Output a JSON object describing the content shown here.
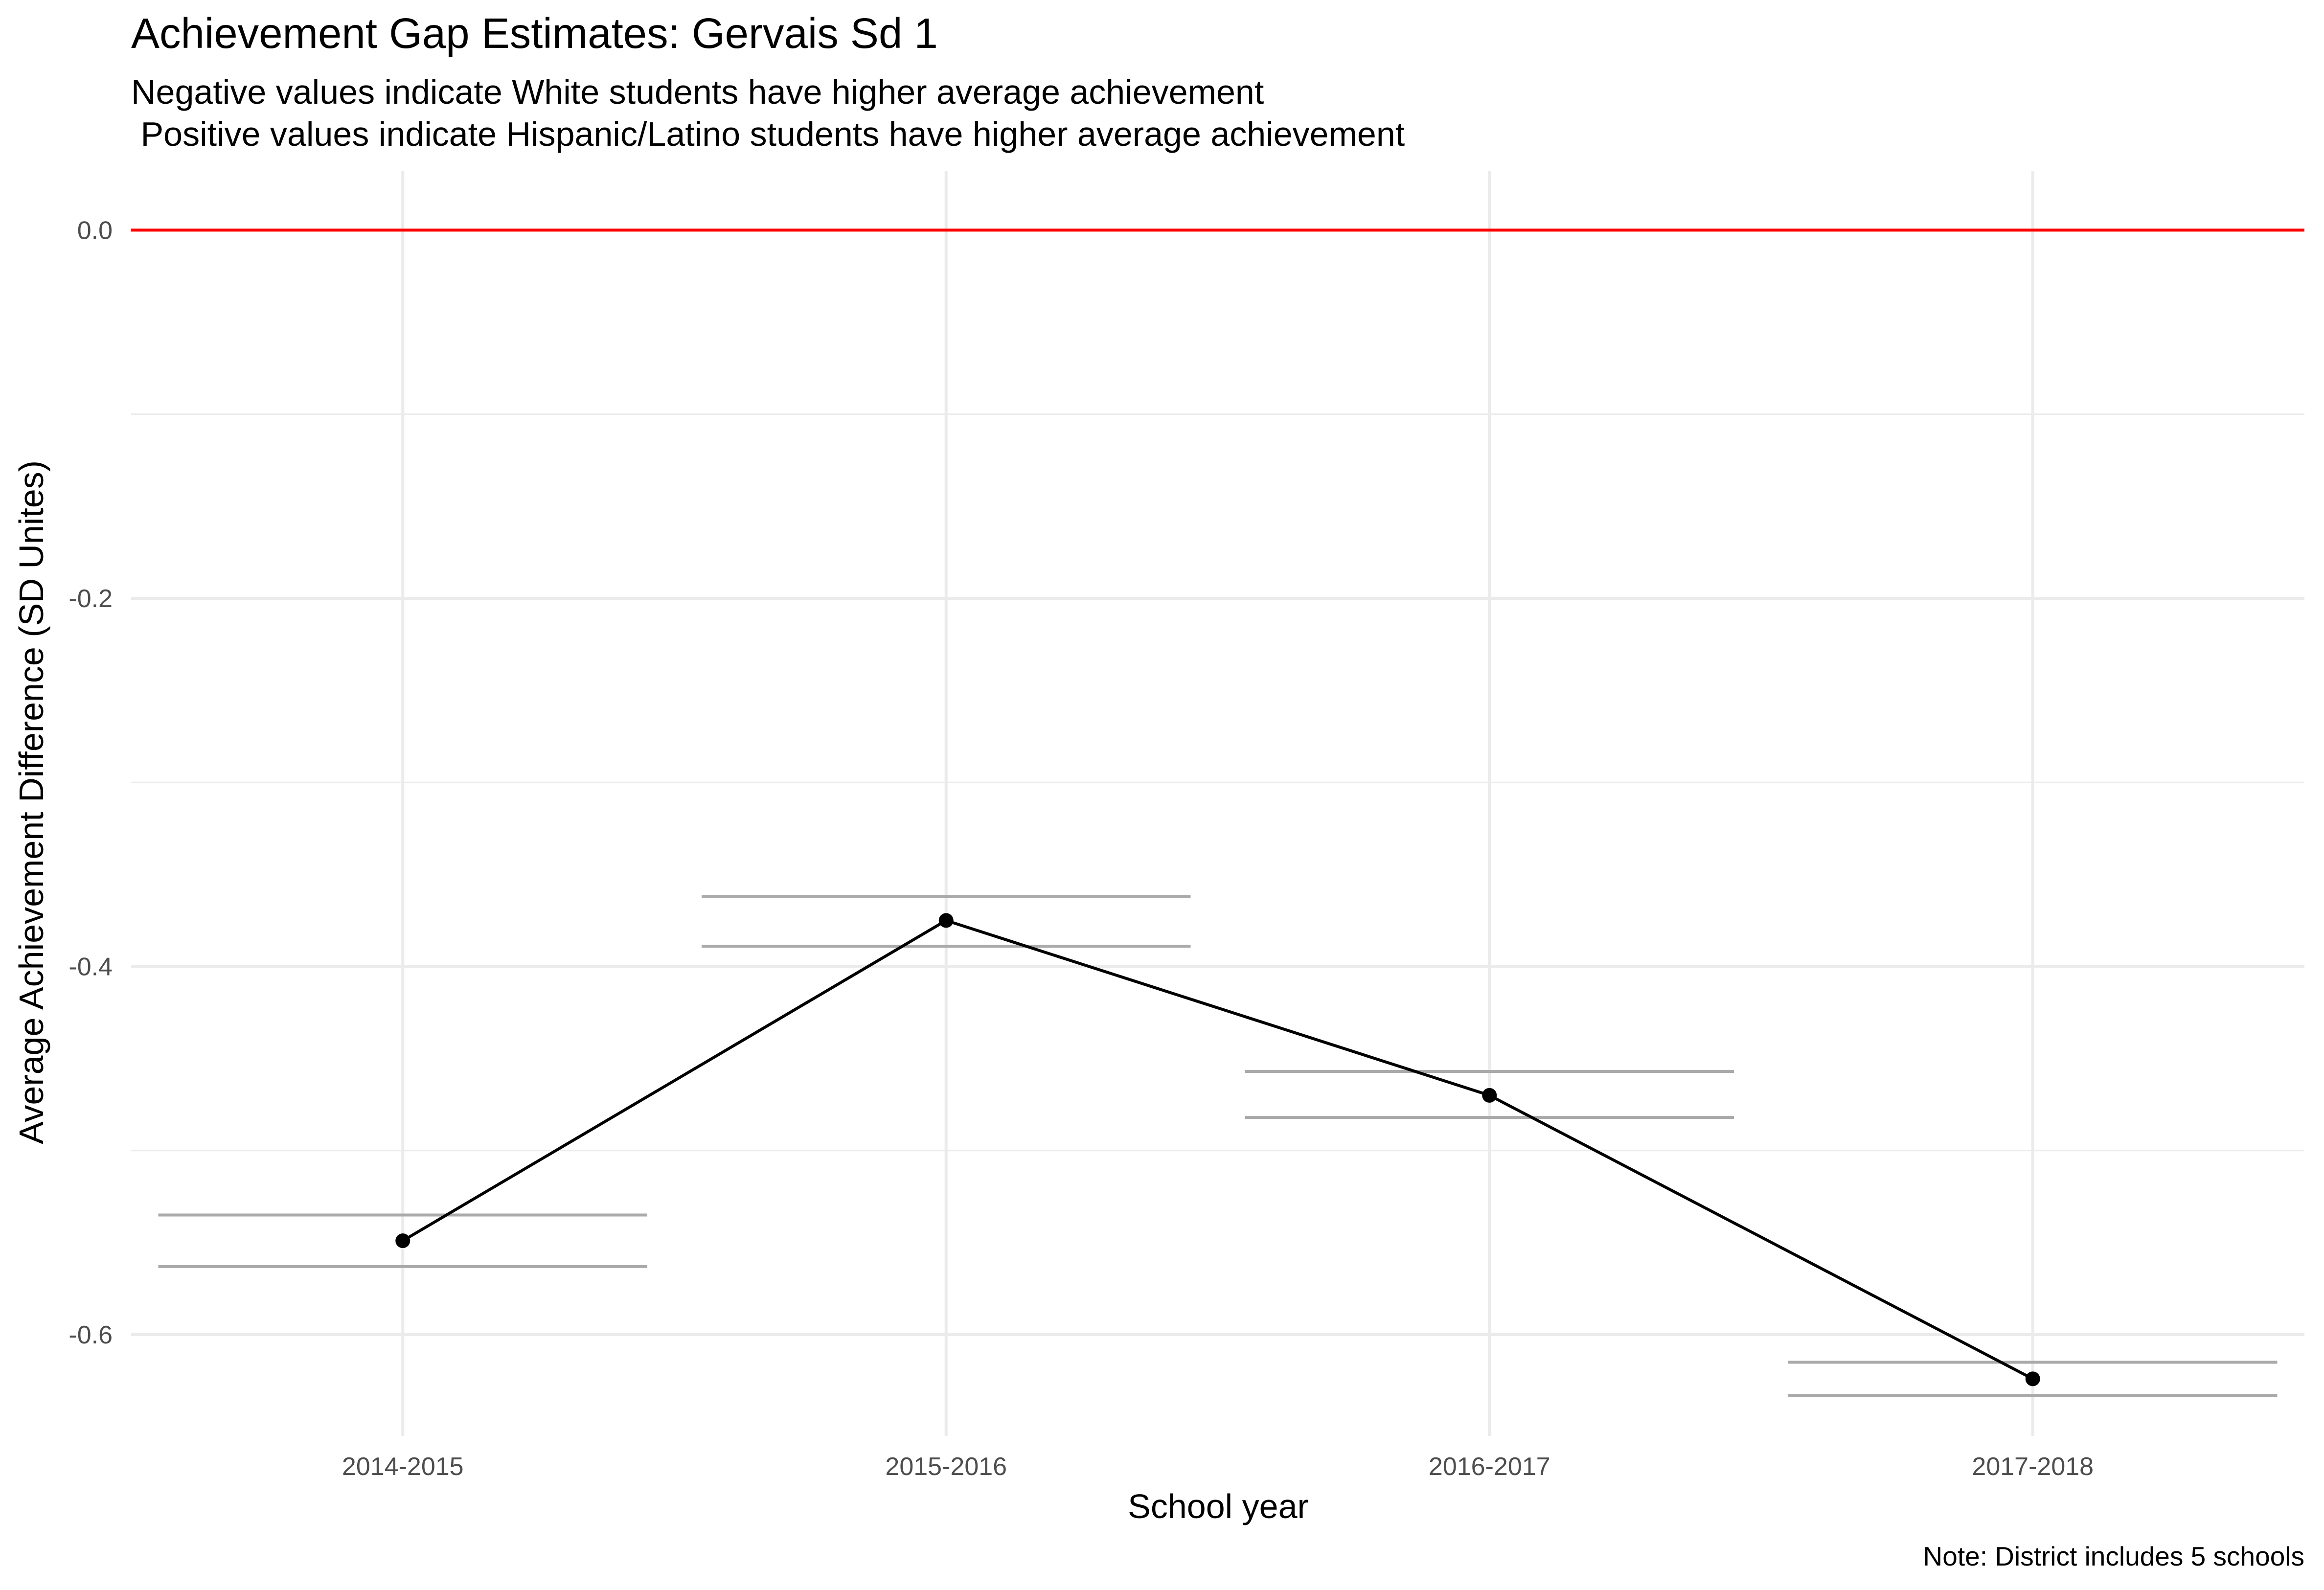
{
  "chart_data": {
    "type": "line",
    "title": "Achievement Gap Estimates: Gervais Sd 1",
    "subtitle_lines": [
      "Negative values indicate White students have higher average achievement",
      " Positive values indicate Hispanic/Latino students have higher average achievement"
    ],
    "xlabel": "School year",
    "ylabel": "Average Achievement Difference (SD Unites)",
    "caption": "Note: District includes 5 schools",
    "categories": [
      "2014-2015",
      "2015-2016",
      "2016-2017",
      "2017-2018"
    ],
    "values": [
      -0.549,
      -0.375,
      -0.47,
      -0.624
    ],
    "interval_upper": [
      -0.535,
      -0.362,
      -0.457,
      -0.615
    ],
    "interval_lower": [
      -0.563,
      -0.389,
      -0.482,
      -0.633
    ],
    "reference_line": 0.0,
    "ylim": [
      -0.655,
      0.032
    ],
    "y_ticks": [
      {
        "value": 0.0,
        "label": "0.0"
      },
      {
        "value": -0.2,
        "label": "-0.2"
      },
      {
        "value": -0.4,
        "label": "-0.4"
      },
      {
        "value": -0.6,
        "label": "-0.6"
      }
    ],
    "y_minor_ticks": [
      -0.1,
      -0.3,
      -0.5
    ],
    "grid": true,
    "legend": "none",
    "colors": {
      "line": "#000000",
      "point": "#000000",
      "interval": "#aaaaaa",
      "reference_line": "#ff0000",
      "grid": "#ebebeb",
      "tick_label": "#4d4d4d"
    }
  }
}
